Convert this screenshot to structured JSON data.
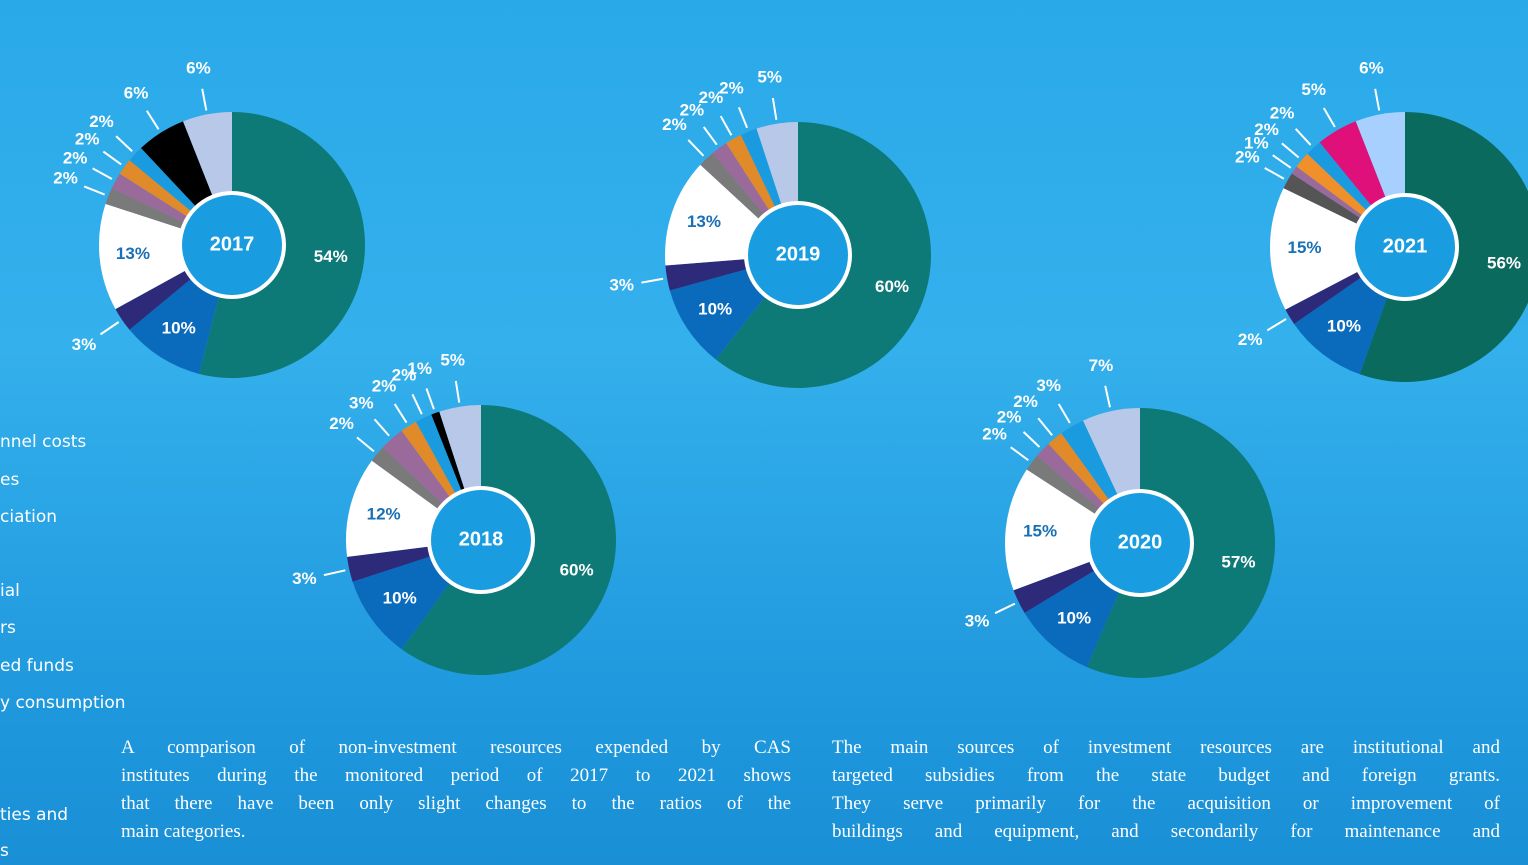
{
  "chart_data": [
    {
      "type": "pie",
      "title": "2017",
      "categories": [
        null,
        null,
        null,
        null,
        null,
        null,
        null,
        null,
        null,
        null
      ],
      "values": [
        54,
        10,
        3,
        13,
        2,
        2,
        2,
        2,
        6,
        6
      ],
      "value_labels": [
        "54%",
        "10%",
        "3%",
        "13%",
        "2%",
        "2%",
        "2%",
        "2%",
        "6%",
        "6%"
      ],
      "colors": [
        "#0e7a78",
        "#0a6bbd",
        "#2e2a7a",
        "#ffffff",
        "#7a7a7a",
        "#9a6a9a",
        "#e08a2a",
        "#1a9be0",
        "#000000",
        "#b8c8e8"
      ]
    },
    {
      "type": "pie",
      "title": "2018",
      "categories": [
        null,
        null,
        null,
        null,
        null,
        null,
        null,
        null,
        null,
        null
      ],
      "values": [
        60,
        10,
        3,
        12,
        2,
        3,
        2,
        2,
        1,
        5
      ],
      "value_labels": [
        "60%",
        "10%",
        "3%",
        "12%",
        "2%",
        "3%",
        "2%",
        "2%",
        "1%",
        "5%"
      ],
      "colors": [
        "#0e7a78",
        "#0a6bbd",
        "#2e2a7a",
        "#ffffff",
        "#7a7a7a",
        "#9a6a9a",
        "#e08a2a",
        "#1a9be0",
        "#000000",
        "#b8c8e8"
      ]
    },
    {
      "type": "pie",
      "title": "2019",
      "categories": [
        null,
        null,
        null,
        null,
        null,
        null,
        null,
        null,
        null
      ],
      "values": [
        60,
        10,
        3,
        13,
        2,
        2,
        2,
        2,
        5
      ],
      "value_labels": [
        "60%",
        "10%",
        "3%",
        "13%",
        "2%",
        "2%",
        "2%",
        "2%",
        "5%"
      ],
      "colors": [
        "#0e7a78",
        "#0a6bbd",
        "#2e2a7a",
        "#ffffff",
        "#7a7a7a",
        "#9a6a9a",
        "#e08a2a",
        "#1a9be0",
        "#b8c8e8"
      ]
    },
    {
      "type": "pie",
      "title": "2020",
      "categories": [
        null,
        null,
        null,
        null,
        null,
        null,
        null,
        null,
        null
      ],
      "values": [
        57,
        10,
        3,
        15,
        2,
        2,
        2,
        3,
        7
      ],
      "value_labels": [
        "57%",
        "10%",
        "3%",
        "15%",
        "2%",
        "2%",
        "2%",
        "3%",
        "7%"
      ],
      "colors": [
        "#0e7a78",
        "#0a6bbd",
        "#2e2a7a",
        "#ffffff",
        "#7a7a7a",
        "#9a6a9a",
        "#e08a2a",
        "#1a9be0",
        "#b8c8e8"
      ]
    },
    {
      "type": "pie",
      "title": "2021",
      "categories": [
        null,
        null,
        null,
        null,
        null,
        null,
        null,
        null,
        null,
        null
      ],
      "values": [
        56,
        10,
        2,
        15,
        2,
        1,
        2,
        2,
        5,
        6
      ],
      "value_labels": [
        "56%",
        "10%",
        "2%",
        "15%",
        "2%",
        "1%",
        "2%",
        "2%",
        "5%",
        "6%"
      ],
      "colors": [
        "#0b6a5e",
        "#0a6bbd",
        "#2e2a7a",
        "#ffffff",
        "#555555",
        "#9a6a9a",
        "#f0902a",
        "#1a9be0",
        "#e0107a",
        "#a8d0ff"
      ]
    }
  ],
  "legend": [
    "nnel costs",
    "es",
    "ciation",
    "ial",
    "rs",
    "ed funds",
    "y consumption",
    "ties and",
    "s"
  ],
  "paragraphs": [
    [
      "A comparison of non-investment resources expended by CAS",
      "institutes during the monitored period of 2017 to 2021 shows",
      "that there have been only slight changes to the ratios of the",
      "main categories."
    ],
    [
      "The main sources of investment resources are institutional and",
      "targeted subsidies from the state budget and foreign grants.",
      "They serve primarily for the acquisition or improvement of",
      "buildings and equipment, and secondarily for maintenance and"
    ]
  ]
}
